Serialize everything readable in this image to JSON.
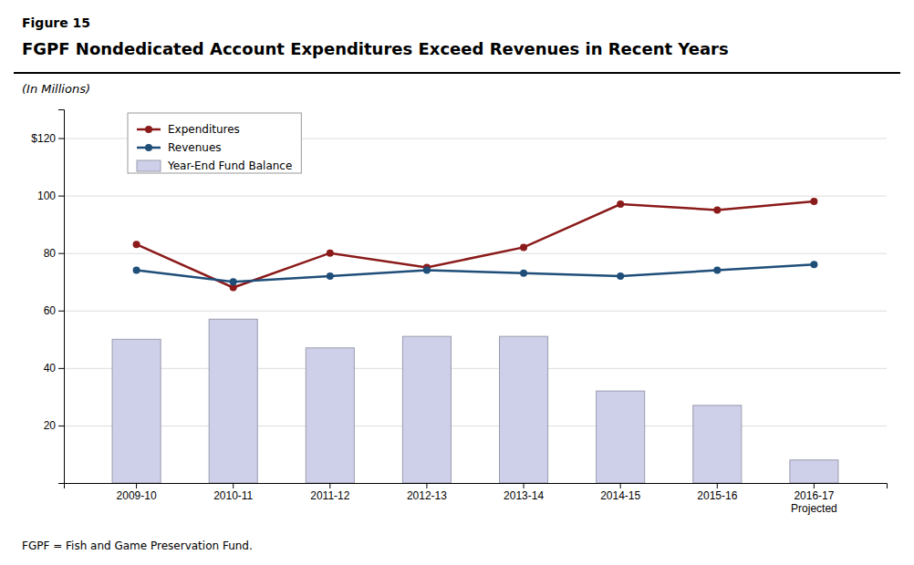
{
  "chart_data": {
    "type": "combo",
    "figure_label": "Figure 15",
    "title": "FGPF Nondedicated Account Expenditures Exceed Revenues in Recent Years",
    "subtitle": "(In Millions)",
    "footnote": "FGPF = Fish and Game Preservation Fund.",
    "categories": [
      "2009-10",
      "2010-11",
      "2011-12",
      "2012-13",
      "2013-14",
      "2014-15",
      "2015-16",
      "2016-17\nProjected"
    ],
    "series": [
      {
        "name": "Expenditures",
        "type": "line",
        "color": "#8B1A1A",
        "marker": "circle",
        "values": [
          83,
          68,
          80,
          75,
          82,
          97,
          95,
          98
        ]
      },
      {
        "name": "Revenues",
        "type": "line",
        "color": "#1F4E79",
        "marker": "circle",
        "values": [
          74,
          70,
          72,
          74,
          73,
          72,
          74,
          76
        ]
      },
      {
        "name": "Year-End Fund Balance",
        "type": "bar",
        "color": "#cdd0e8",
        "values": [
          50,
          57,
          47,
          51,
          51,
          32,
          27,
          8
        ]
      }
    ],
    "ylim": [
      0,
      130
    ],
    "yticks": [
      {
        "value": 0,
        "label": null
      },
      20,
      40,
      60,
      80,
      100,
      {
        "value": 120,
        "label": "$120"
      }
    ],
    "grid": true,
    "legend": "top-left"
  }
}
